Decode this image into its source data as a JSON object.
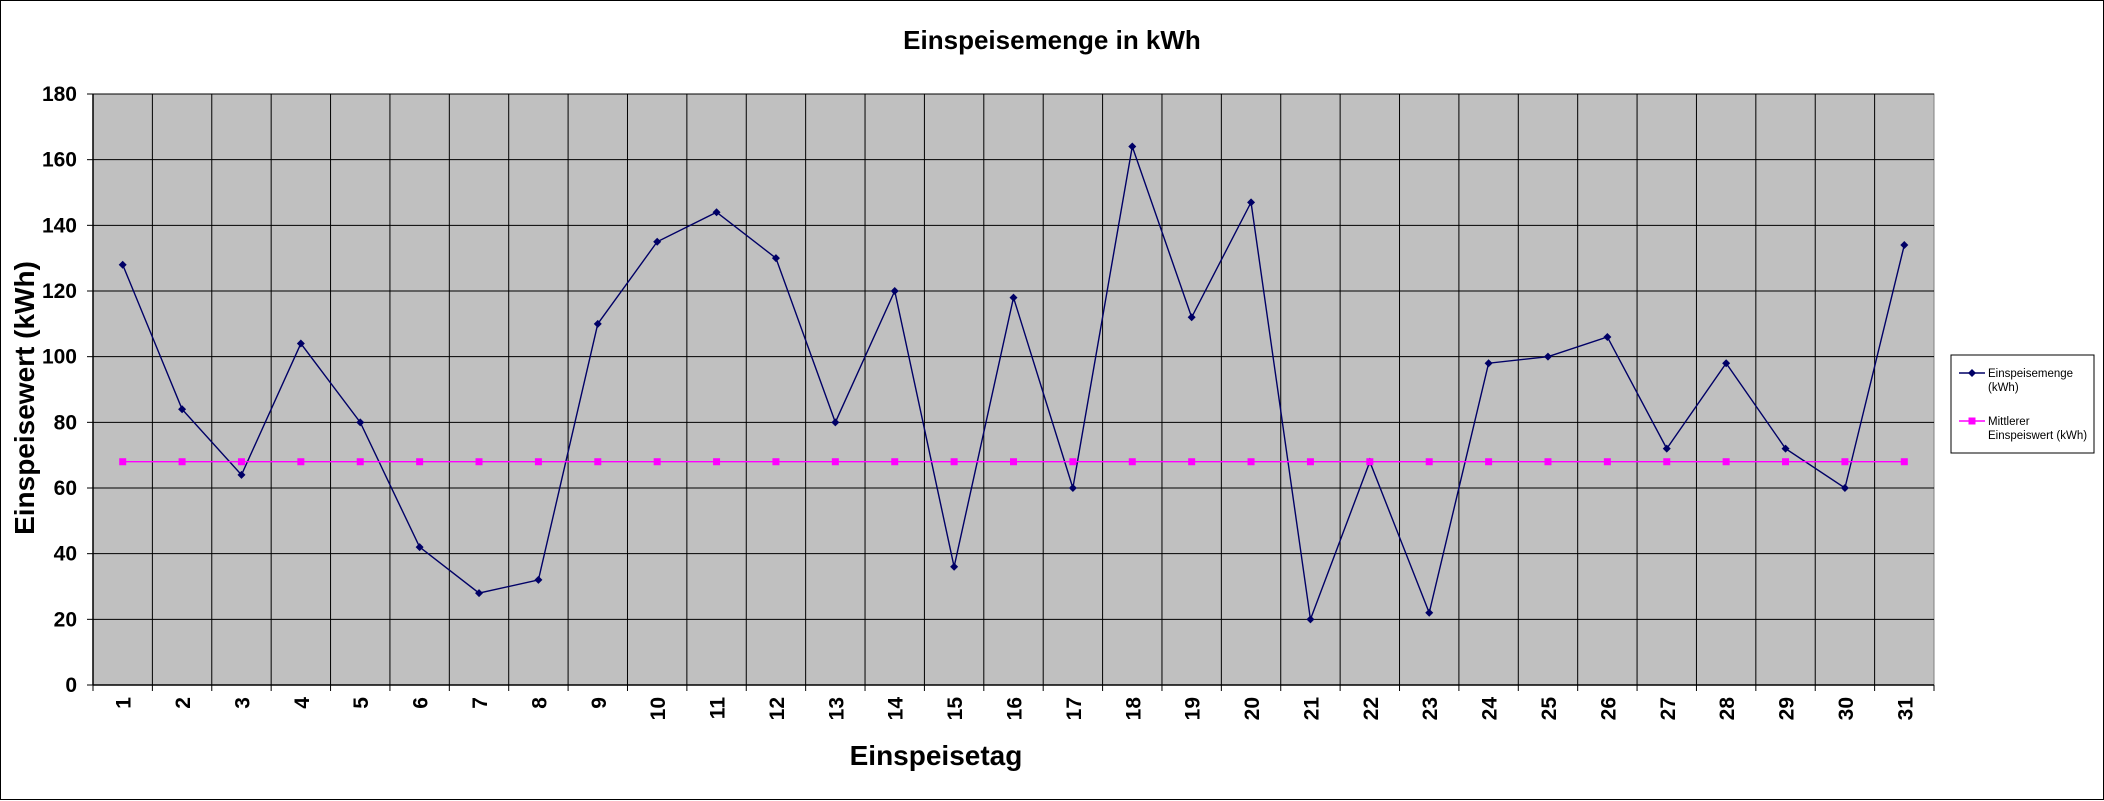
{
  "chart_data": {
    "type": "line",
    "title": "Einspeisemenge in kWh",
    "xlabel": "Einspeisetag",
    "ylabel": "Einspeisewert  (kWh)",
    "categories": [
      "1",
      "2",
      "3",
      "4",
      "5",
      "6",
      "7",
      "8",
      "9",
      "10",
      "11",
      "12",
      "13",
      "14",
      "15",
      "16",
      "17",
      "18",
      "19",
      "20",
      "21",
      "22",
      "23",
      "24",
      "25",
      "26",
      "27",
      "28",
      "29",
      "30",
      "31"
    ],
    "ylim": [
      0,
      180
    ],
    "yticks": [
      "0",
      "20",
      "40",
      "60",
      "80",
      "100",
      "120",
      "140",
      "160",
      "180"
    ],
    "grid": true,
    "legend_position": "right",
    "series": [
      {
        "name": "Einspeisemenge (kWh)",
        "legend_lines": [
          "Einspeisemenge",
          "(kWh)"
        ],
        "color": "#000066",
        "marker": "diamond",
        "values": [
          128,
          84,
          64,
          104,
          80,
          42,
          28,
          32,
          110,
          135,
          144,
          130,
          80,
          120,
          36,
          118,
          60,
          164,
          112,
          147,
          20,
          68,
          22,
          98,
          100,
          106,
          72,
          98,
          72,
          60,
          134
        ]
      },
      {
        "name": "Mittlerer Einspeiswert (kWh)",
        "legend_lines": [
          "Mittlerer",
          "Einspeiswert (kWh)"
        ],
        "color": "#ff00ff",
        "marker": "square",
        "values": [
          68,
          68,
          68,
          68,
          68,
          68,
          68,
          68,
          68,
          68,
          68,
          68,
          68,
          68,
          68,
          68,
          68,
          68,
          68,
          68,
          68,
          68,
          68,
          68,
          68,
          68,
          68,
          68,
          68,
          68,
          68
        ]
      }
    ],
    "plot_background": "#c0c0c0"
  }
}
